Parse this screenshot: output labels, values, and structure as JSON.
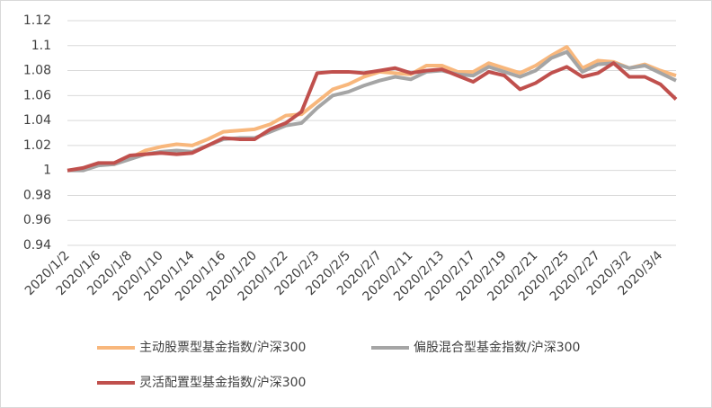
{
  "chart_data": {
    "type": "line",
    "categories": [
      "2020/1/2",
      null,
      "2020/1/6",
      null,
      "2020/1/8",
      null,
      "2020/1/10",
      null,
      "2020/1/14",
      null,
      "2020/1/16",
      null,
      "2020/1/20",
      null,
      "2020/1/22",
      null,
      "2020/2/3",
      null,
      "2020/2/5",
      null,
      "2020/2/7",
      null,
      "2020/2/11",
      null,
      "2020/2/13",
      null,
      "2020/2/17",
      null,
      "2020/2/19",
      null,
      "2020/2/21",
      null,
      "2020/2/25",
      null,
      "2020/2/27",
      null,
      "2020/3/2",
      null,
      "2020/3/4",
      null
    ],
    "series": [
      {
        "name": "主动股票型基金指数/沪深300",
        "color": "#f8b77c",
        "values": [
          1.0,
          1.001,
          1.005,
          1.005,
          1.01,
          1.016,
          1.019,
          1.021,
          1.02,
          1.025,
          1.031,
          1.032,
          1.033,
          1.037,
          1.044,
          1.045,
          1.055,
          1.065,
          1.069,
          1.075,
          1.079,
          1.078,
          1.077,
          1.084,
          1.084,
          1.079,
          1.079,
          1.086,
          1.082,
          1.078,
          1.084,
          1.092,
          1.099,
          1.082,
          1.088,
          1.087,
          1.082,
          1.085,
          1.08,
          1.076
        ]
      },
      {
        "name": "偏股混合型基金指数/沪深300",
        "color": "#a5a5a5",
        "values": [
          1.0,
          1.0,
          1.004,
          1.005,
          1.009,
          1.013,
          1.015,
          1.016,
          1.015,
          1.02,
          1.025,
          1.026,
          1.026,
          1.031,
          1.036,
          1.038,
          1.05,
          1.06,
          1.063,
          1.068,
          1.072,
          1.075,
          1.073,
          1.079,
          1.08,
          1.077,
          1.076,
          1.083,
          1.079,
          1.075,
          1.08,
          1.09,
          1.095,
          1.079,
          1.085,
          1.086,
          1.082,
          1.084,
          1.078,
          1.072
        ]
      },
      {
        "name": "灵活配置型基金指数/沪深300",
        "color": "#c0504d",
        "values": [
          1.0,
          1.002,
          1.006,
          1.006,
          1.012,
          1.013,
          1.014,
          1.013,
          1.014,
          1.02,
          1.026,
          1.025,
          1.025,
          1.033,
          1.038,
          1.047,
          1.078,
          1.079,
          1.079,
          1.078,
          1.08,
          1.082,
          1.078,
          1.08,
          1.081,
          1.076,
          1.071,
          1.079,
          1.076,
          1.065,
          1.07,
          1.078,
          1.083,
          1.075,
          1.078,
          1.086,
          1.075,
          1.075,
          1.069,
          1.057
        ]
      }
    ],
    "ylim": [
      0.94,
      1.12
    ],
    "yticks": [
      0.94,
      0.96,
      0.98,
      1,
      1.02,
      1.04,
      1.06,
      1.08,
      1.1,
      1.12
    ],
    "grid": true,
    "legend": "bottom"
  }
}
